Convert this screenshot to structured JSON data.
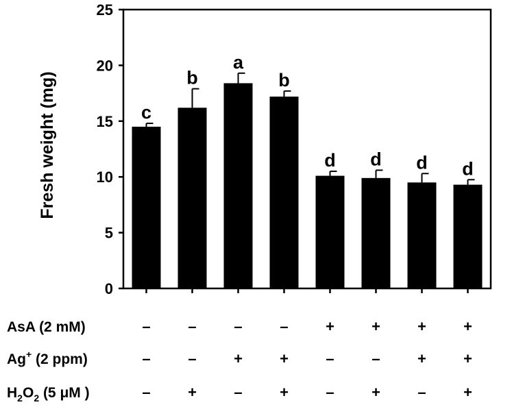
{
  "chart_data": {
    "type": "bar",
    "ylabel": "Fresh weight (mg)",
    "ylim": [
      0,
      25
    ],
    "yticks": [
      0,
      5,
      10,
      15,
      20,
      25
    ],
    "grid": false,
    "color": "#000000",
    "values": [
      14.5,
      16.2,
      18.4,
      17.2,
      10.1,
      9.9,
      9.5,
      9.3
    ],
    "errors": [
      0.3,
      1.7,
      0.9,
      0.5,
      0.4,
      0.7,
      0.8,
      0.45
    ],
    "significance": [
      "c",
      "b",
      "a",
      "b",
      "d",
      "d",
      "d",
      "d"
    ],
    "treatments": [
      {
        "label": "AsA (2 mM)",
        "signs": [
          "–",
          "–",
          "–",
          "–",
          "+",
          "+",
          "+",
          "+"
        ]
      },
      {
        "label": "Ag",
        "label_sup": "+",
        "label_rest": " (2 ppm)",
        "signs": [
          "–",
          "–",
          "+",
          "+",
          "–",
          "–",
          "+",
          "+"
        ]
      },
      {
        "label": "H",
        "label_sub": "2",
        "label_mid": "O",
        "label_sub2": "2",
        "label_rest": " (5 μM )",
        "signs": [
          "–",
          "+",
          "–",
          "+",
          "–",
          "+",
          "–",
          "+"
        ]
      }
    ]
  }
}
